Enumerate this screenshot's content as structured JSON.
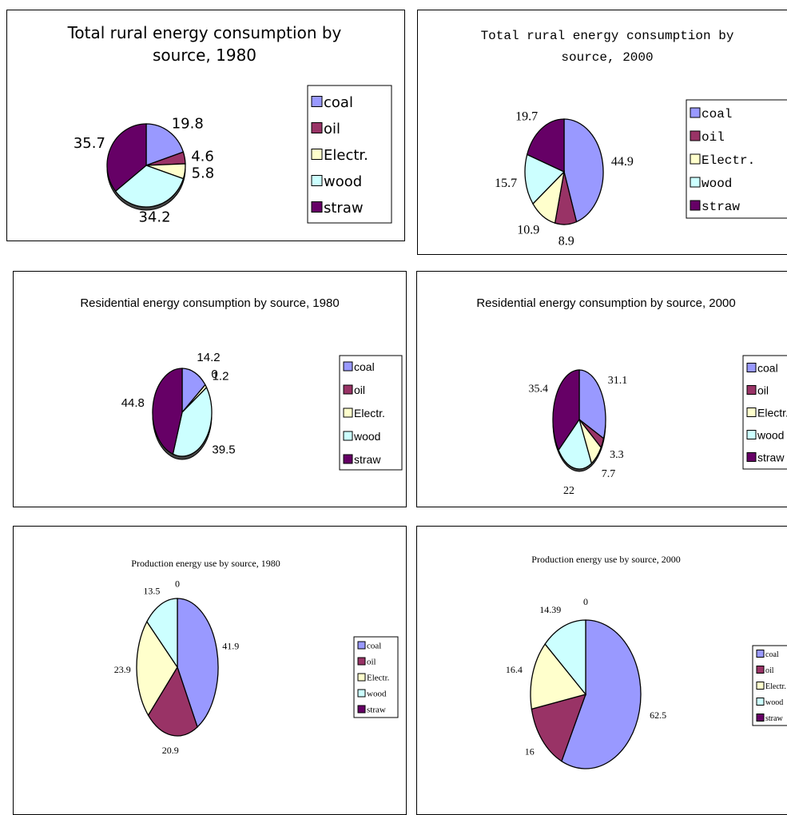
{
  "colors": {
    "coal": "#9999ff",
    "oil": "#993366",
    "Electr.": "#ffffcc",
    "wood": "#ccffff",
    "straw": "#660066"
  },
  "chart_data": [
    {
      "type": "pie",
      "title": "Total rural energy consumption by source, 1980",
      "labels": [
        "coal",
        "oil",
        "Electr.",
        "wood",
        "straw"
      ],
      "values": [
        19.8,
        4.6,
        5.8,
        34.2,
        35.7
      ],
      "data_labels": [
        "19.8",
        "4.6",
        "5.8",
        "34.2",
        "35.7"
      ],
      "legend": "right"
    },
    {
      "type": "pie",
      "title": "Total rural energy consumption by source, 2000",
      "labels": [
        "coal",
        "oil",
        "Electr.",
        "wood",
        "straw"
      ],
      "values": [
        44.9,
        8.9,
        10.9,
        15.7,
        19.7
      ],
      "data_labels": [
        "44.9",
        "8.9",
        "10.9",
        "15.7",
        "19.7"
      ],
      "legend": "right"
    },
    {
      "type": "pie",
      "title": "Residential energy consumption by source, 1980",
      "labels": [
        "coal",
        "oil",
        "Electr.",
        "wood",
        "straw"
      ],
      "values": [
        14.2,
        0,
        1.2,
        39.5,
        44.8
      ],
      "data_labels": [
        "14.2",
        "0",
        "1.2",
        "39.5",
        "44.8"
      ],
      "legend": "right"
    },
    {
      "type": "pie",
      "title": "Residential energy consumption by source, 2000",
      "labels": [
        "coal",
        "oil",
        "Electr.",
        "wood",
        "straw"
      ],
      "values": [
        31.1,
        3.3,
        7.7,
        22,
        35.4
      ],
      "data_labels": [
        "31.1",
        "3.3",
        "7.7",
        "22",
        "35.4"
      ],
      "legend": "right"
    },
    {
      "type": "pie",
      "title": "Production energy use by source, 1980",
      "labels": [
        "coal",
        "oil",
        "Electr.",
        "wood",
        "straw"
      ],
      "values": [
        41.9,
        20.9,
        23.9,
        13.5,
        0
      ],
      "data_labels": [
        "41.9",
        "20.9",
        "23.9",
        "13.5",
        "0"
      ],
      "legend": "right"
    },
    {
      "type": "pie",
      "title": "Production energy use by source, 2000",
      "labels": [
        "coal",
        "oil",
        "Electr.",
        "wood",
        "straw"
      ],
      "values": [
        62.5,
        16,
        16.4,
        14.39,
        0
      ],
      "data_labels": [
        "62.5",
        "16",
        "16.4",
        "14.39",
        "0"
      ],
      "legend": "right"
    }
  ]
}
